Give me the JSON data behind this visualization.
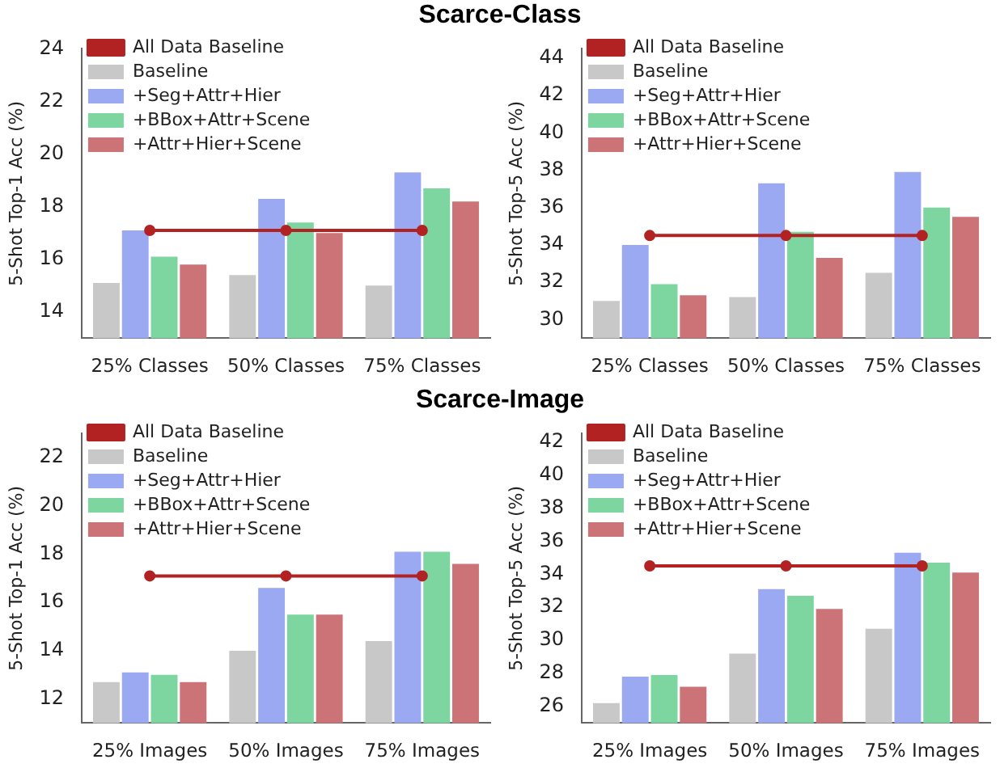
{
  "chart_data": [
    {
      "type": "bar",
      "title": "Scarce-Class",
      "ylabel": "5-Shot Top-1 Acc (%)",
      "categories": [
        "25% Classes",
        "50% Classes",
        "75% Classes"
      ],
      "ylim": [
        13,
        24
      ],
      "yticks": [
        14,
        16,
        18,
        20,
        22,
        24
      ],
      "grid": false,
      "legend": "top left",
      "series": [
        {
          "name": "All Data Baseline",
          "type": "line",
          "marker": "circle",
          "color": "#b22222",
          "values": [
            17.1,
            17.1,
            17.1
          ]
        },
        {
          "name": "Baseline",
          "color": "#c8c8c8",
          "values": [
            15.1,
            15.4,
            15.0
          ]
        },
        {
          "name": "+Seg+Attr+Hier",
          "color": "#9ba8f2",
          "values": [
            17.1,
            18.3,
            19.3
          ]
        },
        {
          "name": "+BBox+Attr+Scene",
          "color": "#7dd6a0",
          "values": [
            16.1,
            17.4,
            18.7
          ]
        },
        {
          "name": "+Attr+Hier+Scene",
          "color": "#cc7377",
          "values": [
            15.8,
            17.0,
            18.2
          ]
        }
      ]
    },
    {
      "type": "bar",
      "ylabel": "5-Shot Top-5 Acc (%)",
      "categories": [
        "25% Classes",
        "50% Classes",
        "75% Classes"
      ],
      "ylim": [
        29,
        44.5
      ],
      "yticks": [
        30,
        32,
        34,
        36,
        38,
        40,
        42,
        44
      ],
      "grid": false,
      "legend": "top left",
      "series": [
        {
          "name": "All Data Baseline",
          "type": "line",
          "marker": "circle",
          "color": "#b22222",
          "values": [
            34.5,
            34.5,
            34.5
          ]
        },
        {
          "name": "Baseline",
          "color": "#c8c8c8",
          "values": [
            31.0,
            31.2,
            32.5
          ]
        },
        {
          "name": "+Seg+Attr+Hier",
          "color": "#9ba8f2",
          "values": [
            34.0,
            37.3,
            37.9
          ]
        },
        {
          "name": "+BBox+Attr+Scene",
          "color": "#7dd6a0",
          "values": [
            31.9,
            34.7,
            36.0
          ]
        },
        {
          "name": "+Attr+Hier+Scene",
          "color": "#cc7377",
          "values": [
            31.3,
            33.3,
            35.5
          ]
        }
      ]
    },
    {
      "type": "bar",
      "title": "Scarce-Image",
      "ylabel": "5-Shot Top-1 Acc (%)",
      "categories": [
        "25% Images",
        "50% Images",
        "75% Images"
      ],
      "ylim": [
        11,
        23
      ],
      "yticks": [
        12,
        14,
        16,
        18,
        20,
        22
      ],
      "grid": false,
      "legend": "top left",
      "series": [
        {
          "name": "All Data Baseline",
          "type": "line",
          "marker": "circle",
          "color": "#b22222",
          "values": [
            17.1,
            17.1,
            17.1
          ]
        },
        {
          "name": "Baseline",
          "color": "#c8c8c8",
          "values": [
            12.7,
            14.0,
            14.4
          ]
        },
        {
          "name": "+Seg+Attr+Hier",
          "color": "#9ba8f2",
          "values": [
            13.1,
            16.6,
            18.1
          ]
        },
        {
          "name": "+BBox+Attr+Scene",
          "color": "#7dd6a0",
          "values": [
            13.0,
            15.5,
            18.1
          ]
        },
        {
          "name": "+Attr+Hier+Scene",
          "color": "#cc7377",
          "values": [
            12.7,
            15.5,
            17.6
          ]
        }
      ]
    },
    {
      "type": "bar",
      "ylabel": "5-Shot Top-5 Acc (%)",
      "categories": [
        "25% Images",
        "50% Images",
        "75% Images"
      ],
      "ylim": [
        25,
        42.5
      ],
      "yticks": [
        26,
        28,
        30,
        32,
        34,
        36,
        38,
        40,
        42
      ],
      "grid": false,
      "legend": "top left",
      "series": [
        {
          "name": "All Data Baseline",
          "type": "line",
          "marker": "circle",
          "color": "#b22222",
          "values": [
            34.5,
            34.5,
            34.5
          ]
        },
        {
          "name": "Baseline",
          "color": "#c8c8c8",
          "values": [
            26.2,
            29.2,
            30.7
          ]
        },
        {
          "name": "+Seg+Attr+Hier",
          "color": "#9ba8f2",
          "values": [
            27.8,
            33.1,
            35.3
          ]
        },
        {
          "name": "+BBox+Attr+Scene",
          "color": "#7dd6a0",
          "values": [
            27.9,
            32.7,
            34.7
          ]
        },
        {
          "name": "+Attr+Hier+Scene",
          "color": "#cc7377",
          "values": [
            27.2,
            31.9,
            34.1
          ]
        }
      ]
    }
  ]
}
